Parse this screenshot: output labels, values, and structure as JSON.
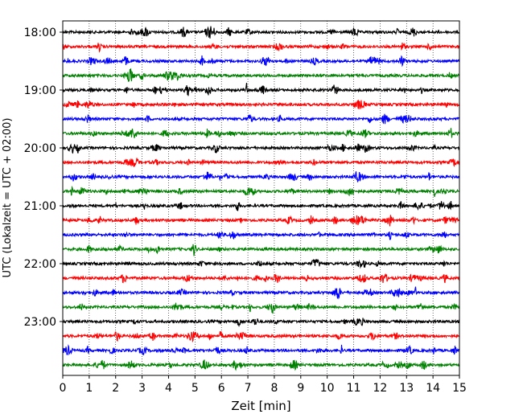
{
  "chart_data": {
    "type": "line",
    "title": "",
    "xlabel": "Zeit  [min]",
    "ylabel": "UTC (Lokalzeit = UTC + 02:00)",
    "xlim": [
      0,
      15
    ],
    "x_ticks": [
      "0",
      "1",
      "2",
      "3",
      "4",
      "5",
      "6",
      "7",
      "8",
      "9",
      "10",
      "11",
      "12",
      "13",
      "14",
      "15"
    ],
    "y_tick_labels": [
      "18:00",
      "19:00",
      "20:00",
      "21:00",
      "22:00",
      "23:00"
    ],
    "grid": "vertical dotted",
    "trace_interval_minutes": 15,
    "colors": {
      "cycle": [
        "#000000",
        "#ff0000",
        "#0000ff",
        "#008000"
      ]
    },
    "traces": [
      {
        "start": "18:00",
        "color": "black"
      },
      {
        "start": "18:15",
        "color": "red"
      },
      {
        "start": "18:30",
        "color": "blue"
      },
      {
        "start": "18:45",
        "color": "green"
      },
      {
        "start": "19:00",
        "color": "black"
      },
      {
        "start": "19:15",
        "color": "red"
      },
      {
        "start": "19:30",
        "color": "blue"
      },
      {
        "start": "19:45",
        "color": "green"
      },
      {
        "start": "20:00",
        "color": "black"
      },
      {
        "start": "20:15",
        "color": "red"
      },
      {
        "start": "20:30",
        "color": "blue"
      },
      {
        "start": "20:45",
        "color": "green"
      },
      {
        "start": "21:00",
        "color": "black"
      },
      {
        "start": "21:15",
        "color": "red"
      },
      {
        "start": "21:30",
        "color": "blue"
      },
      {
        "start": "21:45",
        "color": "green"
      },
      {
        "start": "22:00",
        "color": "black"
      },
      {
        "start": "22:15",
        "color": "red"
      },
      {
        "start": "22:30",
        "color": "blue"
      },
      {
        "start": "22:45",
        "color": "green"
      },
      {
        "start": "23:00",
        "color": "black"
      },
      {
        "start": "23:15",
        "color": "red"
      },
      {
        "start": "23:30",
        "color": "blue"
      },
      {
        "start": "23:45",
        "color": "green"
      }
    ]
  }
}
